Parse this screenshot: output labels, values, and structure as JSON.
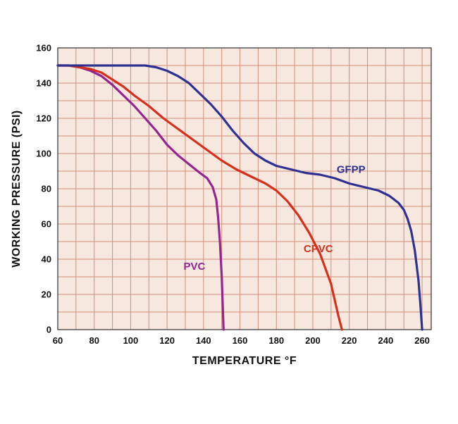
{
  "chart_data": {
    "type": "line",
    "title": "",
    "xlabel": "TEMPERATURE °F",
    "ylabel": "WORKING PRESSURE (PSI)",
    "xlim": [
      60,
      265
    ],
    "ylim": [
      0,
      160
    ],
    "x_ticks": [
      60,
      80,
      100,
      120,
      140,
      160,
      180,
      200,
      220,
      240,
      260
    ],
    "y_ticks": [
      0,
      20,
      40,
      60,
      80,
      100,
      120,
      140,
      160
    ],
    "grid": true,
    "grid_step_x": 10,
    "grid_step_y": 10,
    "legend_position": "inline-labels",
    "colors": {
      "plot_bg": "#f6e7df",
      "grid": "#d28e7a",
      "border": "#4a4a4a",
      "axis_text": "#111111"
    },
    "series": [
      {
        "name": "PVC",
        "color": "#93278f",
        "label_pos": [
          135,
          34
        ],
        "points": [
          [
            60,
            150
          ],
          [
            66,
            150
          ],
          [
            72,
            149
          ],
          [
            78,
            147
          ],
          [
            84,
            144
          ],
          [
            90,
            139
          ],
          [
            96,
            133
          ],
          [
            102,
            127
          ],
          [
            108,
            120
          ],
          [
            114,
            113
          ],
          [
            120,
            105
          ],
          [
            126,
            99
          ],
          [
            132,
            94
          ],
          [
            138,
            89
          ],
          [
            142,
            86
          ],
          [
            145,
            81
          ],
          [
            147,
            74
          ],
          [
            148,
            64
          ],
          [
            149,
            50
          ],
          [
            150,
            30
          ],
          [
            151,
            0
          ]
        ]
      },
      {
        "name": "CPVC",
        "color": "#d6301d",
        "label_pos": [
          203,
          44
        ],
        "points": [
          [
            60,
            150
          ],
          [
            66,
            150
          ],
          [
            72,
            149
          ],
          [
            78,
            148
          ],
          [
            84,
            146
          ],
          [
            90,
            142
          ],
          [
            96,
            138
          ],
          [
            102,
            133
          ],
          [
            110,
            127
          ],
          [
            118,
            120
          ],
          [
            126,
            114
          ],
          [
            134,
            108
          ],
          [
            142,
            102
          ],
          [
            150,
            96
          ],
          [
            158,
            91
          ],
          [
            166,
            87
          ],
          [
            174,
            83
          ],
          [
            180,
            79
          ],
          [
            186,
            73
          ],
          [
            192,
            65
          ],
          [
            198,
            55
          ],
          [
            204,
            43
          ],
          [
            210,
            26
          ],
          [
            214,
            8
          ],
          [
            216,
            0
          ]
        ]
      },
      {
        "name": "GFPP",
        "color": "#2e3192",
        "label_pos": [
          221,
          89
        ],
        "points": [
          [
            60,
            150
          ],
          [
            70,
            150
          ],
          [
            80,
            150
          ],
          [
            90,
            150
          ],
          [
            100,
            150
          ],
          [
            108,
            150
          ],
          [
            114,
            149
          ],
          [
            120,
            147
          ],
          [
            126,
            144
          ],
          [
            132,
            140
          ],
          [
            138,
            134
          ],
          [
            144,
            128
          ],
          [
            150,
            121
          ],
          [
            156,
            113
          ],
          [
            162,
            106
          ],
          [
            168,
            100
          ],
          [
            174,
            96
          ],
          [
            180,
            93
          ],
          [
            188,
            91
          ],
          [
            196,
            89
          ],
          [
            204,
            88
          ],
          [
            212,
            86
          ],
          [
            220,
            83
          ],
          [
            228,
            81
          ],
          [
            236,
            79
          ],
          [
            242,
            76
          ],
          [
            247,
            72
          ],
          [
            250,
            68
          ],
          [
            252,
            63
          ],
          [
            254,
            56
          ],
          [
            256,
            45
          ],
          [
            258,
            28
          ],
          [
            259,
            15
          ],
          [
            260,
            0
          ]
        ]
      }
    ]
  }
}
